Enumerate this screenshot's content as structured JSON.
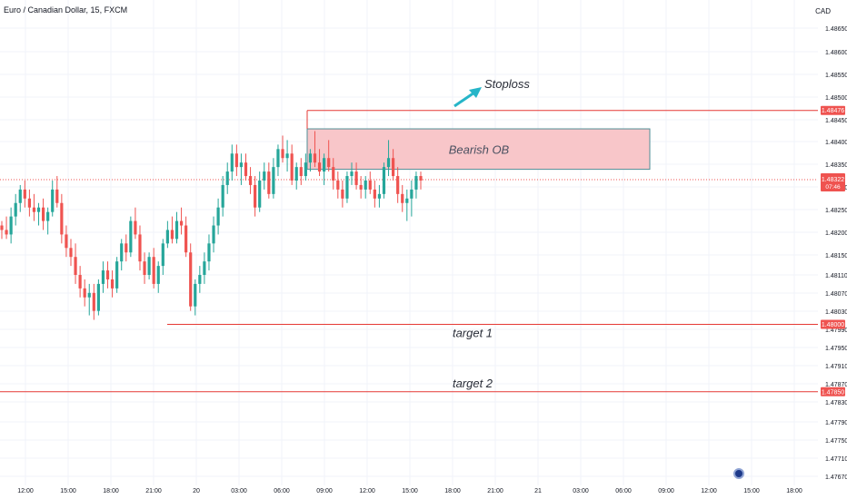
{
  "header": {
    "symbol_title": "Euro / Canadian Dollar, 15, FXCM",
    "currency": "CAD"
  },
  "annotations": {
    "stoploss": "Stoploss",
    "bearish_ob": "Bearish OB",
    "target1": "target 1",
    "target2": "target 2"
  },
  "price_tags": {
    "stoploss_price": "1.48476",
    "current_price": "1.48322",
    "countdown": "07:46",
    "target1_price": "1.48000",
    "target2_price": "1.47850"
  },
  "colors": {
    "up": "#26a69a",
    "down": "#ef5350",
    "level_line": "#e53935",
    "ob_fill": "#f8c6c9",
    "ob_border": "#4f8e96",
    "arrow": "#26b5c8",
    "grid": "#f0f3fa"
  },
  "chart_data": {
    "type": "candlestick",
    "symbol": "Euro / Canadian Dollar",
    "timeframe": "15",
    "source": "FXCM",
    "y_axis": {
      "ticks": [
        "1.48650",
        "1.48600",
        "1.48550",
        "1.48500",
        "1.48450",
        "1.48400",
        "1.48350",
        "1.48300",
        "1.48250",
        "1.48200",
        "1.48150",
        "1.48110",
        "1.48070",
        "1.48030",
        "1.47990",
        "1.47950",
        "1.47910",
        "1.47870",
        "1.47830",
        "1.47790",
        "1.47750",
        "1.47710",
        "1.47670"
      ],
      "range": [
        1.4765,
        1.4868
      ]
    },
    "x_axis": {
      "ticks": [
        "12:00",
        "15:00",
        "18:00",
        "21:00",
        "20",
        "03:00",
        "06:00",
        "09:00",
        "12:00",
        "15:00",
        "18:00",
        "21:00",
        "21",
        "03:00",
        "06:00",
        "09:00",
        "12:00",
        "15:00",
        "18:00"
      ]
    },
    "levels": [
      {
        "name": "stoploss",
        "price": 1.48476,
        "label": "1.48476"
      },
      {
        "name": "current",
        "price": 1.48322,
        "label": "1.48322"
      },
      {
        "name": "target 1",
        "price": 1.48,
        "label": "1.48000"
      },
      {
        "name": "target 2",
        "price": 1.4785,
        "label": "1.47850"
      }
    ],
    "zone": {
      "name": "Bearish OB",
      "top": 1.48435,
      "bottom": 1.48345
    },
    "candles": [
      {
        "o": 1.4822,
        "h": 1.4823,
        "l": 1.4819,
        "c": 1.4821
      },
      {
        "o": 1.4821,
        "h": 1.4824,
        "l": 1.4819,
        "c": 1.482
      },
      {
        "o": 1.482,
        "h": 1.4826,
        "l": 1.4818,
        "c": 1.4824
      },
      {
        "o": 1.4824,
        "h": 1.4829,
        "l": 1.4822,
        "c": 1.4827
      },
      {
        "o": 1.4827,
        "h": 1.4831,
        "l": 1.4825,
        "c": 1.483
      },
      {
        "o": 1.483,
        "h": 1.4832,
        "l": 1.4826,
        "c": 1.4828
      },
      {
        "o": 1.4828,
        "h": 1.483,
        "l": 1.4824,
        "c": 1.4826
      },
      {
        "o": 1.4826,
        "h": 1.4829,
        "l": 1.4823,
        "c": 1.4825
      },
      {
        "o": 1.4825,
        "h": 1.4827,
        "l": 1.4822,
        "c": 1.4826
      },
      {
        "o": 1.4826,
        "h": 1.4828,
        "l": 1.4821,
        "c": 1.4823
      },
      {
        "o": 1.4823,
        "h": 1.4826,
        "l": 1.482,
        "c": 1.4825
      },
      {
        "o": 1.4825,
        "h": 1.4832,
        "l": 1.4824,
        "c": 1.483
      },
      {
        "o": 1.483,
        "h": 1.4833,
        "l": 1.4826,
        "c": 1.4827
      },
      {
        "o": 1.4827,
        "h": 1.4829,
        "l": 1.4818,
        "c": 1.482
      },
      {
        "o": 1.482,
        "h": 1.4822,
        "l": 1.4815,
        "c": 1.4817
      },
      {
        "o": 1.4817,
        "h": 1.4819,
        "l": 1.4813,
        "c": 1.4815
      },
      {
        "o": 1.4815,
        "h": 1.4818,
        "l": 1.4809,
        "c": 1.4811
      },
      {
        "o": 1.4811,
        "h": 1.4813,
        "l": 1.4806,
        "c": 1.4808
      },
      {
        "o": 1.4808,
        "h": 1.481,
        "l": 1.4804,
        "c": 1.4806
      },
      {
        "o": 1.4806,
        "h": 1.4809,
        "l": 1.4802,
        "c": 1.4807
      },
      {
        "o": 1.4807,
        "h": 1.4809,
        "l": 1.4801,
        "c": 1.4803
      },
      {
        "o": 1.4803,
        "h": 1.481,
        "l": 1.4802,
        "c": 1.4809
      },
      {
        "o": 1.4809,
        "h": 1.4814,
        "l": 1.4807,
        "c": 1.4812
      },
      {
        "o": 1.4812,
        "h": 1.4814,
        "l": 1.4808,
        "c": 1.481
      },
      {
        "o": 1.481,
        "h": 1.4812,
        "l": 1.4806,
        "c": 1.4808
      },
      {
        "o": 1.4808,
        "h": 1.4815,
        "l": 1.4807,
        "c": 1.4814
      },
      {
        "o": 1.4814,
        "h": 1.4819,
        "l": 1.4812,
        "c": 1.4818
      },
      {
        "o": 1.4818,
        "h": 1.482,
        "l": 1.4814,
        "c": 1.4816
      },
      {
        "o": 1.4816,
        "h": 1.4824,
        "l": 1.4815,
        "c": 1.4823
      },
      {
        "o": 1.4823,
        "h": 1.4826,
        "l": 1.4819,
        "c": 1.482
      },
      {
        "o": 1.482,
        "h": 1.4822,
        "l": 1.4812,
        "c": 1.4814
      },
      {
        "o": 1.4814,
        "h": 1.4816,
        "l": 1.4809,
        "c": 1.4811
      },
      {
        "o": 1.4811,
        "h": 1.4816,
        "l": 1.481,
        "c": 1.4815
      },
      {
        "o": 1.4815,
        "h": 1.4817,
        "l": 1.4808,
        "c": 1.4809
      },
      {
        "o": 1.4809,
        "h": 1.4814,
        "l": 1.4807,
        "c": 1.4813
      },
      {
        "o": 1.4813,
        "h": 1.4819,
        "l": 1.4811,
        "c": 1.4818
      },
      {
        "o": 1.4818,
        "h": 1.4823,
        "l": 1.4817,
        "c": 1.4821
      },
      {
        "o": 1.4821,
        "h": 1.4824,
        "l": 1.4818,
        "c": 1.4819
      },
      {
        "o": 1.4819,
        "h": 1.4825,
        "l": 1.4818,
        "c": 1.4823
      },
      {
        "o": 1.4823,
        "h": 1.4826,
        "l": 1.482,
        "c": 1.4822
      },
      {
        "o": 1.4822,
        "h": 1.4824,
        "l": 1.4815,
        "c": 1.4816
      },
      {
        "o": 1.4816,
        "h": 1.4818,
        "l": 1.4803,
        "c": 1.4804
      },
      {
        "o": 1.4804,
        "h": 1.481,
        "l": 1.4802,
        "c": 1.4809
      },
      {
        "o": 1.4809,
        "h": 1.4813,
        "l": 1.4807,
        "c": 1.4811
      },
      {
        "o": 1.4811,
        "h": 1.4816,
        "l": 1.4809,
        "c": 1.4814
      },
      {
        "o": 1.4814,
        "h": 1.482,
        "l": 1.4812,
        "c": 1.4818
      },
      {
        "o": 1.4818,
        "h": 1.4824,
        "l": 1.4816,
        "c": 1.4822
      },
      {
        "o": 1.4822,
        "h": 1.4828,
        "l": 1.482,
        "c": 1.4826
      },
      {
        "o": 1.4826,
        "h": 1.4833,
        "l": 1.4824,
        "c": 1.4831
      },
      {
        "o": 1.4831,
        "h": 1.4836,
        "l": 1.4829,
        "c": 1.4834
      },
      {
        "o": 1.4834,
        "h": 1.484,
        "l": 1.4832,
        "c": 1.4838
      },
      {
        "o": 1.4838,
        "h": 1.484,
        "l": 1.4833,
        "c": 1.4835
      },
      {
        "o": 1.4835,
        "h": 1.4838,
        "l": 1.4831,
        "c": 1.4836
      },
      {
        "o": 1.4836,
        "h": 1.4838,
        "l": 1.4832,
        "c": 1.4833
      },
      {
        "o": 1.4833,
        "h": 1.4835,
        "l": 1.4829,
        "c": 1.4831
      },
      {
        "o": 1.4831,
        "h": 1.4833,
        "l": 1.4824,
        "c": 1.4826
      },
      {
        "o": 1.4826,
        "h": 1.4834,
        "l": 1.4825,
        "c": 1.4832
      },
      {
        "o": 1.4832,
        "h": 1.4836,
        "l": 1.483,
        "c": 1.4834
      },
      {
        "o": 1.4834,
        "h": 1.4836,
        "l": 1.4828,
        "c": 1.4829
      },
      {
        "o": 1.4829,
        "h": 1.4837,
        "l": 1.4828,
        "c": 1.4835
      },
      {
        "o": 1.4835,
        "h": 1.484,
        "l": 1.4833,
        "c": 1.4839
      },
      {
        "o": 1.4839,
        "h": 1.4842,
        "l": 1.4836,
        "c": 1.4837
      },
      {
        "o": 1.4837,
        "h": 1.4841,
        "l": 1.4834,
        "c": 1.4838
      },
      {
        "o": 1.4838,
        "h": 1.484,
        "l": 1.4831,
        "c": 1.4832
      },
      {
        "o": 1.4832,
        "h": 1.4836,
        "l": 1.483,
        "c": 1.4835
      },
      {
        "o": 1.4835,
        "h": 1.4837,
        "l": 1.4831,
        "c": 1.4833
      },
      {
        "o": 1.4833,
        "h": 1.4838,
        "l": 1.4832,
        "c": 1.4836
      },
      {
        "o": 1.4836,
        "h": 1.4839,
        "l": 1.4834,
        "c": 1.4838
      },
      {
        "o": 1.4838,
        "h": 1.4843,
        "l": 1.4835,
        "c": 1.4836
      },
      {
        "o": 1.4836,
        "h": 1.4839,
        "l": 1.4833,
        "c": 1.4834
      },
      {
        "o": 1.4834,
        "h": 1.4838,
        "l": 1.4831,
        "c": 1.4837
      },
      {
        "o": 1.4837,
        "h": 1.4841,
        "l": 1.4834,
        "c": 1.4835
      },
      {
        "o": 1.4835,
        "h": 1.4837,
        "l": 1.483,
        "c": 1.4832
      },
      {
        "o": 1.4832,
        "h": 1.4834,
        "l": 1.4828,
        "c": 1.483
      },
      {
        "o": 1.483,
        "h": 1.4832,
        "l": 1.4826,
        "c": 1.4828
      },
      {
        "o": 1.4828,
        "h": 1.4834,
        "l": 1.4827,
        "c": 1.4833
      },
      {
        "o": 1.4833,
        "h": 1.4836,
        "l": 1.4831,
        "c": 1.4834
      },
      {
        "o": 1.4834,
        "h": 1.4836,
        "l": 1.483,
        "c": 1.4831
      },
      {
        "o": 1.4831,
        "h": 1.4833,
        "l": 1.4828,
        "c": 1.483
      },
      {
        "o": 1.483,
        "h": 1.4833,
        "l": 1.4828,
        "c": 1.4832
      },
      {
        "o": 1.4832,
        "h": 1.4834,
        "l": 1.4829,
        "c": 1.483
      },
      {
        "o": 1.483,
        "h": 1.4832,
        "l": 1.4826,
        "c": 1.4828
      },
      {
        "o": 1.4828,
        "h": 1.4831,
        "l": 1.4826,
        "c": 1.4829
      },
      {
        "o": 1.4829,
        "h": 1.4836,
        "l": 1.4828,
        "c": 1.4835
      },
      {
        "o": 1.4835,
        "h": 1.4841,
        "l": 1.4833,
        "c": 1.4837
      },
      {
        "o": 1.4837,
        "h": 1.4839,
        "l": 1.4832,
        "c": 1.4833
      },
      {
        "o": 1.4833,
        "h": 1.4835,
        "l": 1.4827,
        "c": 1.4829
      },
      {
        "o": 1.4829,
        "h": 1.4831,
        "l": 1.4825,
        "c": 1.4827
      },
      {
        "o": 1.4827,
        "h": 1.483,
        "l": 1.4823,
        "c": 1.4828
      },
      {
        "o": 1.4828,
        "h": 1.4832,
        "l": 1.4824,
        "c": 1.483
      },
      {
        "o": 1.483,
        "h": 1.4834,
        "l": 1.4828,
        "c": 1.4833
      },
      {
        "o": 1.4833,
        "h": 1.4834,
        "l": 1.483,
        "c": 1.4832
      }
    ]
  }
}
